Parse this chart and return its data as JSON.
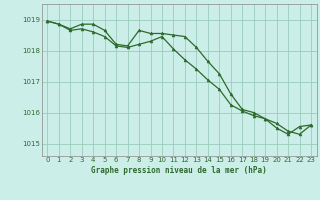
{
  "title": "Graphe pression niveau de la mer (hPa)",
  "bg_color": "#cceee8",
  "grid_color": "#99ccbb",
  "line_color": "#2d6a2d",
  "marker_color": "#2d6a2d",
  "ylim": [
    1014.6,
    1019.5
  ],
  "xlim": [
    -0.5,
    23.5
  ],
  "yticks": [
    1015,
    1016,
    1017,
    1018,
    1019
  ],
  "xticks": [
    0,
    1,
    2,
    3,
    4,
    5,
    6,
    7,
    8,
    9,
    10,
    11,
    12,
    13,
    14,
    15,
    16,
    17,
    18,
    19,
    20,
    21,
    22,
    23
  ],
  "series1_x": [
    0,
    1,
    2,
    3,
    4,
    5,
    6,
    7,
    8,
    9,
    10,
    11,
    12,
    13,
    14,
    15,
    16,
    17,
    18,
    19,
    20,
    21,
    22,
    23
  ],
  "series1_y": [
    1018.95,
    1018.85,
    1018.7,
    1018.85,
    1018.85,
    1018.65,
    1018.2,
    1018.15,
    1018.65,
    1018.55,
    1018.55,
    1018.5,
    1018.45,
    1018.1,
    1017.65,
    1017.25,
    1016.6,
    1016.1,
    1016.0,
    1015.8,
    1015.5,
    1015.3,
    1015.55,
    1015.6
  ],
  "series2_x": [
    0,
    1,
    2,
    3,
    4,
    5,
    6,
    7,
    8,
    9,
    10,
    11,
    12,
    13,
    14,
    15,
    16,
    17,
    18,
    19,
    20,
    21,
    22,
    23
  ],
  "series2_y": [
    1018.95,
    1018.85,
    1018.65,
    1018.7,
    1018.6,
    1018.45,
    1018.15,
    1018.1,
    1018.2,
    1018.3,
    1018.45,
    1018.05,
    1017.7,
    1017.4,
    1017.05,
    1016.75,
    1016.25,
    1016.05,
    1015.9,
    1015.8,
    1015.65,
    1015.4,
    1015.3,
    1015.6
  ]
}
